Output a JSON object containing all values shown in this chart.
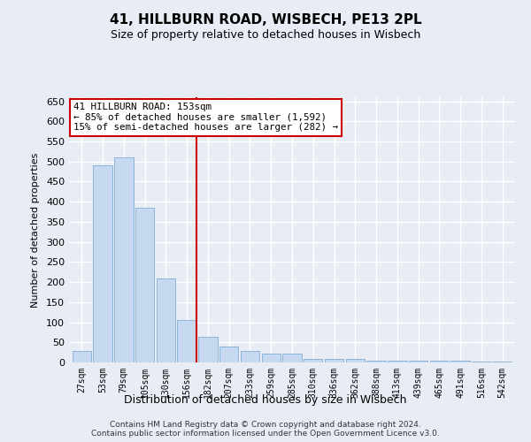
{
  "title": "41, HILLBURN ROAD, WISBECH, PE13 2PL",
  "subtitle": "Size of property relative to detached houses in Wisbech",
  "xlabel": "Distribution of detached houses by size in Wisbech",
  "ylabel": "Number of detached properties",
  "bar_color": "#c6d9f0",
  "bar_edge_color": "#8db4d9",
  "background_color": "#e8edf5",
  "grid_color": "#ffffff",
  "vline_color": "#cc0000",
  "vline_x": 5.45,
  "annotation_text": "41 HILLBURN ROAD: 153sqm\n← 85% of detached houses are smaller (1,592)\n15% of semi-detached houses are larger (282) →",
  "annotation_box_color": "#ffffff",
  "annotation_box_edge": "#cc0000",
  "categories": [
    "27sqm",
    "53sqm",
    "79sqm",
    "105sqm",
    "130sqm",
    "156sqm",
    "182sqm",
    "207sqm",
    "233sqm",
    "259sqm",
    "285sqm",
    "310sqm",
    "336sqm",
    "362sqm",
    "388sqm",
    "413sqm",
    "439sqm",
    "465sqm",
    "491sqm",
    "516sqm",
    "542sqm"
  ],
  "values": [
    28,
    490,
    510,
    385,
    210,
    105,
    63,
    40,
    28,
    22,
    22,
    8,
    8,
    8,
    5,
    5,
    5,
    5,
    5,
    2,
    2
  ],
  "ylim": [
    0,
    660
  ],
  "yticks": [
    0,
    50,
    100,
    150,
    200,
    250,
    300,
    350,
    400,
    450,
    500,
    550,
    600,
    650
  ],
  "footnote": "Contains HM Land Registry data © Crown copyright and database right 2024.\nContains public sector information licensed under the Open Government Licence v3.0.",
  "figsize": [
    6.0,
    5.0
  ],
  "dpi": 100
}
